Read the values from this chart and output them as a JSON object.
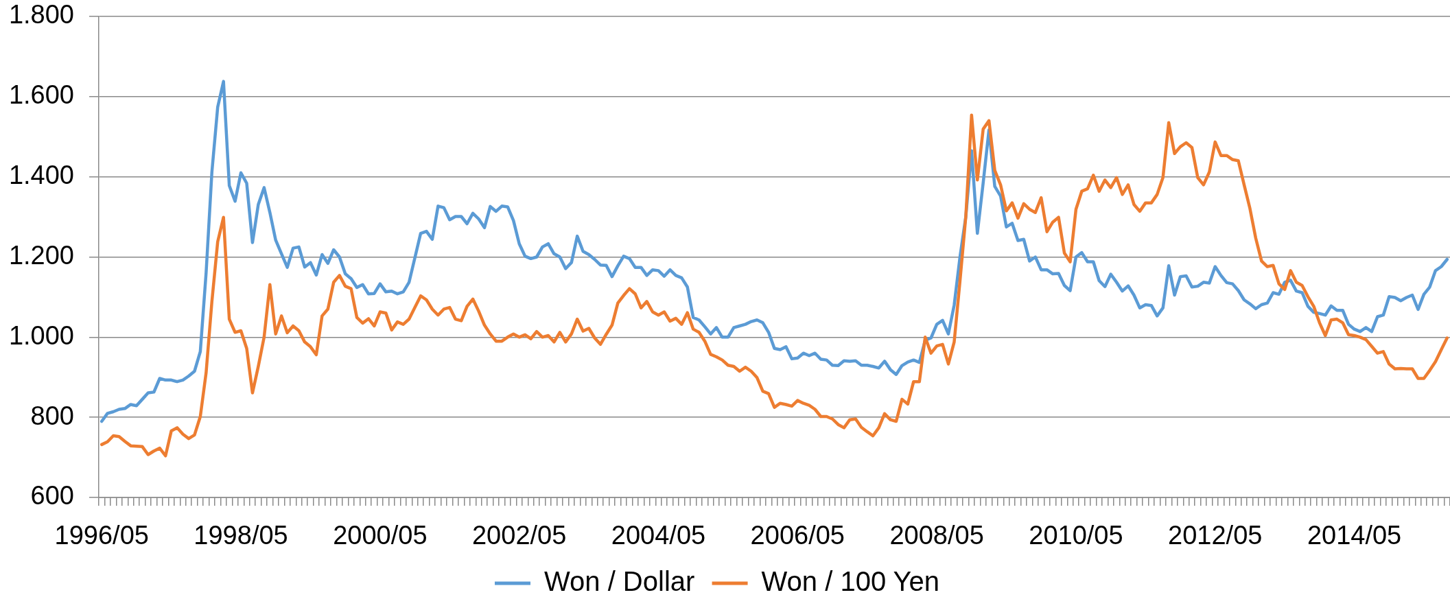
{
  "chart_data": {
    "type": "line",
    "categories": [
      "1996/05",
      null,
      null,
      null,
      null,
      null,
      null,
      null,
      null,
      null,
      null,
      null,
      null,
      null,
      null,
      null,
      null,
      null,
      null,
      null,
      null,
      null,
      null,
      null,
      "1998/05",
      null,
      null,
      null,
      null,
      null,
      null,
      null,
      null,
      null,
      null,
      null,
      null,
      null,
      null,
      null,
      null,
      null,
      null,
      null,
      null,
      null,
      null,
      null,
      "2000/05",
      null,
      null,
      null,
      null,
      null,
      null,
      null,
      null,
      null,
      null,
      null,
      null,
      null,
      null,
      null,
      null,
      null,
      null,
      null,
      null,
      null,
      null,
      null,
      "2002/05",
      null,
      null,
      null,
      null,
      null,
      null,
      null,
      null,
      null,
      null,
      null,
      null,
      null,
      null,
      null,
      null,
      null,
      null,
      null,
      null,
      null,
      null,
      null,
      "2004/05",
      null,
      null,
      null,
      null,
      null,
      null,
      null,
      null,
      null,
      null,
      null,
      null,
      null,
      null,
      null,
      null,
      null,
      null,
      null,
      null,
      null,
      null,
      null,
      "2006/05",
      null,
      null,
      null,
      null,
      null,
      null,
      null,
      null,
      null,
      null,
      null,
      null,
      null,
      null,
      null,
      null,
      null,
      null,
      null,
      null,
      null,
      null,
      null,
      "2008/05",
      null,
      null,
      null,
      null,
      null,
      null,
      null,
      null,
      null,
      null,
      null,
      null,
      null,
      null,
      null,
      null,
      null,
      null,
      null,
      null,
      null,
      null,
      null,
      "2010/05",
      null,
      null,
      null,
      null,
      null,
      null,
      null,
      null,
      null,
      null,
      null,
      null,
      null,
      null,
      null,
      null,
      null,
      null,
      null,
      null,
      null,
      null,
      null,
      "2012/05",
      null,
      null,
      null,
      null,
      null,
      null,
      null,
      null,
      null,
      null,
      null,
      null,
      null,
      null,
      null,
      null,
      null,
      null,
      null,
      null,
      null,
      null,
      null,
      "2014/05",
      null,
      null,
      null,
      null,
      null,
      null,
      null,
      null,
      null,
      null,
      null,
      null,
      null,
      null,
      null,
      null
    ],
    "series": [
      {
        "name": "Won / Dollar",
        "color": "#5b9bd5",
        "values": [
          790,
          810,
          814,
          820,
          822,
          832,
          829,
          845,
          861,
          863,
          897,
          893,
          893,
          889,
          893,
          903,
          915,
          964,
          1160,
          1412,
          1574,
          1638,
          1378,
          1339,
          1410,
          1384,
          1236,
          1331,
          1373,
          1311,
          1242,
          1208,
          1174,
          1222,
          1225,
          1175,
          1186,
          1155,
          1206,
          1184,
          1218,
          1200,
          1158,
          1146,
          1124,
          1131,
          1108,
          1109,
          1133,
          1113,
          1115,
          1108,
          1113,
          1137,
          1198,
          1259,
          1264,
          1244,
          1327,
          1323,
          1293,
          1301,
          1301,
          1283,
          1309,
          1295,
          1273,
          1326,
          1314,
          1327,
          1325,
          1291,
          1233,
          1202,
          1196,
          1200,
          1225,
          1233,
          1208,
          1200,
          1171,
          1186,
          1252,
          1214,
          1206,
          1194,
          1180,
          1179,
          1151,
          1178,
          1202,
          1196,
          1174,
          1174,
          1154,
          1168,
          1166,
          1152,
          1168,
          1154,
          1148,
          1125,
          1049,
          1043,
          1026,
          1008,
          1024,
          1000,
          1000,
          1024,
          1028,
          1032,
          1039,
          1043,
          1036,
          1012,
          972,
          969,
          976,
          946,
          948,
          960,
          954,
          960,
          945,
          943,
          930,
          929,
          941,
          940,
          941,
          930,
          930,
          927,
          923,
          940,
          919,
          907,
          929,
          938,
          943,
          937,
          992,
          998,
          1032,
          1042,
          1008,
          1080,
          1200,
          1300,
          1465,
          1259,
          1385,
          1517,
          1376,
          1352,
          1275,
          1284,
          1241,
          1244,
          1190,
          1200,
          1168,
          1168,
          1158,
          1159,
          1129,
          1116,
          1200,
          1211,
          1188,
          1188,
          1141,
          1126,
          1157,
          1137,
          1115,
          1128,
          1105,
          1073,
          1081,
          1079,
          1053,
          1073,
          1178,
          1105,
          1151,
          1153,
          1125,
          1127,
          1137,
          1135,
          1176,
          1154,
          1136,
          1133,
          1116,
          1093,
          1083,
          1071,
          1081,
          1085,
          1111,
          1107,
          1137,
          1142,
          1115,
          1111,
          1077,
          1062,
          1059,
          1055,
          1078,
          1067,
          1067,
          1032,
          1020,
          1014,
          1024,
          1014,
          1051,
          1055,
          1101,
          1099,
          1091,
          1099,
          1105,
          1069,
          1107,
          1125,
          1166,
          1176,
          1194
        ]
      },
      {
        "name": "Won / 100 Yen",
        "color": "#ed7d31",
        "values": [
          732,
          739,
          754,
          752,
          740,
          729,
          728,
          727,
          707,
          716,
          723,
          704,
          766,
          774,
          758,
          747,
          756,
          802,
          911,
          1089,
          1238,
          1299,
          1045,
          1012,
          1016,
          972,
          861,
          927,
          1000,
          1131,
          1008,
          1053,
          1011,
          1028,
          1016,
          988,
          976,
          956,
          1053,
          1070,
          1137,
          1154,
          1127,
          1121,
          1049,
          1035,
          1046,
          1028,
          1063,
          1060,
          1018,
          1038,
          1032,
          1045,
          1074,
          1103,
          1093,
          1070,
          1055,
          1070,
          1074,
          1045,
          1041,
          1077,
          1095,
          1065,
          1030,
          1008,
          990,
          990,
          1000,
          1008,
          1000,
          1006,
          996,
          1014,
          1000,
          1004,
          988,
          1012,
          988,
          1008,
          1045,
          1015,
          1022,
          998,
          982,
          1007,
          1030,
          1085,
          1104,
          1121,
          1108,
          1073,
          1089,
          1063,
          1055,
          1063,
          1040,
          1047,
          1032,
          1061,
          1020,
          1012,
          990,
          957,
          951,
          943,
          930,
          927,
          915,
          925,
          915,
          899,
          865,
          859,
          825,
          835,
          832,
          828,
          842,
          835,
          830,
          820,
          802,
          802,
          796,
          782,
          774,
          794,
          796,
          775,
          764,
          754,
          774,
          809,
          794,
          790,
          845,
          833,
          889,
          889,
          1000,
          960,
          978,
          982,
          933,
          988,
          1140,
          1300,
          1554,
          1392,
          1519,
          1540,
          1416,
          1380,
          1315,
          1335,
          1297,
          1333,
          1319,
          1311,
          1348,
          1263,
          1287,
          1299,
          1210,
          1188,
          1319,
          1364,
          1370,
          1404,
          1364,
          1392,
          1373,
          1398,
          1356,
          1380,
          1331,
          1314,
          1335,
          1335,
          1356,
          1398,
          1535,
          1458,
          1475,
          1485,
          1473,
          1398,
          1380,
          1412,
          1487,
          1453,
          1453,
          1443,
          1440,
          1380,
          1321,
          1247,
          1190,
          1176,
          1179,
          1133,
          1119,
          1166,
          1137,
          1129,
          1101,
          1077,
          1036,
          1004,
          1043,
          1045,
          1036,
          1006,
          1004,
          1000,
          994,
          977,
          960,
          964,
          933,
          921,
          922,
          921,
          921,
          897,
          897,
          917,
          939,
          969,
          998
        ]
      }
    ],
    "ylim": [
      600,
      1800
    ],
    "yticks": [
      {
        "value": 600,
        "label": "600"
      },
      {
        "value": 800,
        "label": "800"
      },
      {
        "value": 1000,
        "label": "1.000"
      },
      {
        "value": 1200,
        "label": "1.200"
      },
      {
        "value": 1400,
        "label": "1.400"
      },
      {
        "value": 1600,
        "label": "1.600"
      },
      {
        "value": 1800,
        "label": "1.800"
      }
    ],
    "grid": "y",
    "legend": "bottom"
  }
}
